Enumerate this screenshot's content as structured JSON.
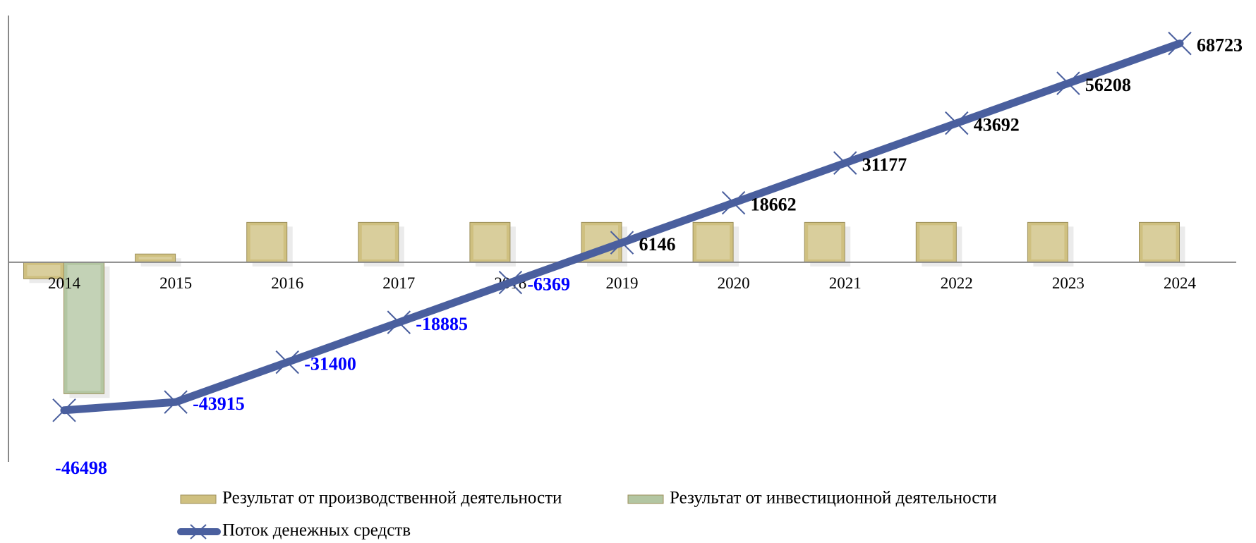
{
  "chart_data": {
    "type": "bar-line",
    "categories": [
      "2014",
      "2015",
      "2016",
      "2017",
      "2018",
      "2019",
      "2020",
      "2021",
      "2022",
      "2023",
      "2024"
    ],
    "ylim": [
      -60500,
      77500
    ],
    "series": [
      {
        "name": "Результат от производственной деятельности",
        "type": "bar",
        "color": "#cfc080",
        "values": [
          -5200,
          2583,
          12515,
          12515,
          12515,
          12515,
          12515,
          12515,
          12515,
          12515,
          12515
        ]
      },
      {
        "name": "Результат от инвестиционной деятельности",
        "type": "bar",
        "color": "#b3c6a2",
        "values": [
          -41300,
          null,
          null,
          null,
          null,
          null,
          null,
          null,
          null,
          null,
          null
        ]
      },
      {
        "name": "Поток денежных средств",
        "type": "line",
        "color": "#4a5f9e",
        "values": [
          -46498,
          -43915,
          -31400,
          -18885,
          -6369,
          6146,
          18662,
          31177,
          43692,
          56208,
          68723
        ],
        "label_colors": {
          "negative": "#0000ff",
          "positive": "#000000"
        }
      }
    ]
  }
}
